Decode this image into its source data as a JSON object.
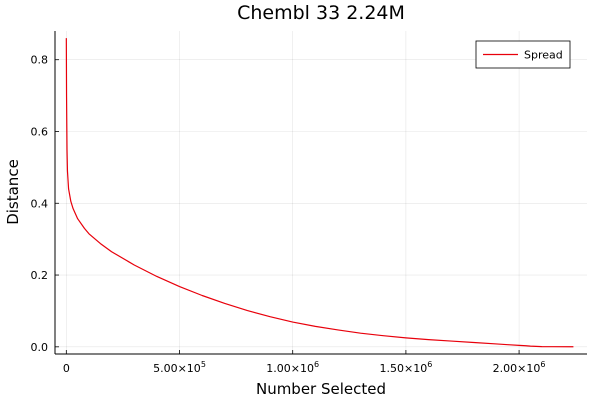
{
  "chart_data": {
    "type": "line",
    "title": "Chembl 33 2.24M",
    "xlabel": "Number Selected",
    "ylabel": "Distance",
    "xlim": [
      -50000,
      2300000
    ],
    "ylim": [
      -0.02,
      0.88
    ],
    "grid": true,
    "legend_position": "top-right",
    "x_ticks": [
      {
        "value": 0,
        "mantissa": "0",
        "exp": ""
      },
      {
        "value": 500000,
        "mantissa": "5.00×10",
        "exp": "5"
      },
      {
        "value": 1000000,
        "mantissa": "1.00×10",
        "exp": "6"
      },
      {
        "value": 1500000,
        "mantissa": "1.50×10",
        "exp": "6"
      },
      {
        "value": 2000000,
        "mantissa": "2.00×10",
        "exp": "6"
      }
    ],
    "y_ticks": [
      {
        "value": 0.0,
        "label": "0.0"
      },
      {
        "value": 0.2,
        "label": "0.2"
      },
      {
        "value": 0.4,
        "label": "0.4"
      },
      {
        "value": 0.6,
        "label": "0.6"
      },
      {
        "value": 0.8,
        "label": "0.8"
      }
    ],
    "series": [
      {
        "name": "Spread",
        "color": "#e8000b",
        "x": [
          0,
          1000,
          3000,
          5000,
          10000,
          20000,
          30000,
          50000,
          80000,
          100000,
          150000,
          200000,
          300000,
          400000,
          500000,
          600000,
          700000,
          800000,
          900000,
          1000000,
          1100000,
          1200000,
          1300000,
          1400000,
          1500000,
          1600000,
          1700000,
          1800000,
          1900000,
          1950000,
          2000000,
          2030000,
          2050000,
          2100000,
          2150000,
          2240000
        ],
        "y": [
          0.86,
          0.7,
          0.55,
          0.49,
          0.44,
          0.405,
          0.385,
          0.357,
          0.33,
          0.315,
          0.288,
          0.265,
          0.228,
          0.196,
          0.168,
          0.143,
          0.121,
          0.101,
          0.084,
          0.069,
          0.057,
          0.047,
          0.038,
          0.031,
          0.025,
          0.02,
          0.016,
          0.012,
          0.008,
          0.006,
          0.004,
          0.003,
          0.002,
          0.0005,
          0.0003,
          0.0002
        ]
      }
    ]
  }
}
